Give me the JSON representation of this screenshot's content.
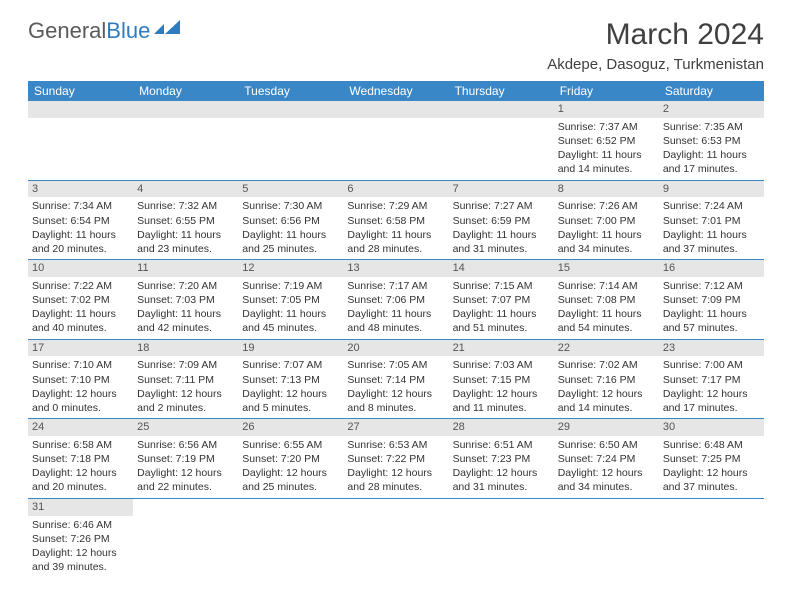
{
  "logo": {
    "general": "General",
    "blue": "Blue"
  },
  "title": "March 2024",
  "location": "Akdepe, Dasoguz, Turkmenistan",
  "colors": {
    "header_bg": "#3a87c8",
    "header_text": "#ffffff",
    "daynum_bg": "#e6e6e6",
    "border": "#3a87c8",
    "logo_gray": "#5a5a5a",
    "logo_blue": "#2f7bbf"
  },
  "day_headers": [
    "Sunday",
    "Monday",
    "Tuesday",
    "Wednesday",
    "Thursday",
    "Friday",
    "Saturday"
  ],
  "weeks": [
    [
      null,
      null,
      null,
      null,
      null,
      {
        "day": "1",
        "sunrise": "Sunrise: 7:37 AM",
        "sunset": "Sunset: 6:52 PM",
        "dl1": "Daylight: 11 hours",
        "dl2": "and 14 minutes."
      },
      {
        "day": "2",
        "sunrise": "Sunrise: 7:35 AM",
        "sunset": "Sunset: 6:53 PM",
        "dl1": "Daylight: 11 hours",
        "dl2": "and 17 minutes."
      }
    ],
    [
      {
        "day": "3",
        "sunrise": "Sunrise: 7:34 AM",
        "sunset": "Sunset: 6:54 PM",
        "dl1": "Daylight: 11 hours",
        "dl2": "and 20 minutes."
      },
      {
        "day": "4",
        "sunrise": "Sunrise: 7:32 AM",
        "sunset": "Sunset: 6:55 PM",
        "dl1": "Daylight: 11 hours",
        "dl2": "and 23 minutes."
      },
      {
        "day": "5",
        "sunrise": "Sunrise: 7:30 AM",
        "sunset": "Sunset: 6:56 PM",
        "dl1": "Daylight: 11 hours",
        "dl2": "and 25 minutes."
      },
      {
        "day": "6",
        "sunrise": "Sunrise: 7:29 AM",
        "sunset": "Sunset: 6:58 PM",
        "dl1": "Daylight: 11 hours",
        "dl2": "and 28 minutes."
      },
      {
        "day": "7",
        "sunrise": "Sunrise: 7:27 AM",
        "sunset": "Sunset: 6:59 PM",
        "dl1": "Daylight: 11 hours",
        "dl2": "and 31 minutes."
      },
      {
        "day": "8",
        "sunrise": "Sunrise: 7:26 AM",
        "sunset": "Sunset: 7:00 PM",
        "dl1": "Daylight: 11 hours",
        "dl2": "and 34 minutes."
      },
      {
        "day": "9",
        "sunrise": "Sunrise: 7:24 AM",
        "sunset": "Sunset: 7:01 PM",
        "dl1": "Daylight: 11 hours",
        "dl2": "and 37 minutes."
      }
    ],
    [
      {
        "day": "10",
        "sunrise": "Sunrise: 7:22 AM",
        "sunset": "Sunset: 7:02 PM",
        "dl1": "Daylight: 11 hours",
        "dl2": "and 40 minutes."
      },
      {
        "day": "11",
        "sunrise": "Sunrise: 7:20 AM",
        "sunset": "Sunset: 7:03 PM",
        "dl1": "Daylight: 11 hours",
        "dl2": "and 42 minutes."
      },
      {
        "day": "12",
        "sunrise": "Sunrise: 7:19 AM",
        "sunset": "Sunset: 7:05 PM",
        "dl1": "Daylight: 11 hours",
        "dl2": "and 45 minutes."
      },
      {
        "day": "13",
        "sunrise": "Sunrise: 7:17 AM",
        "sunset": "Sunset: 7:06 PM",
        "dl1": "Daylight: 11 hours",
        "dl2": "and 48 minutes."
      },
      {
        "day": "14",
        "sunrise": "Sunrise: 7:15 AM",
        "sunset": "Sunset: 7:07 PM",
        "dl1": "Daylight: 11 hours",
        "dl2": "and 51 minutes."
      },
      {
        "day": "15",
        "sunrise": "Sunrise: 7:14 AM",
        "sunset": "Sunset: 7:08 PM",
        "dl1": "Daylight: 11 hours",
        "dl2": "and 54 minutes."
      },
      {
        "day": "16",
        "sunrise": "Sunrise: 7:12 AM",
        "sunset": "Sunset: 7:09 PM",
        "dl1": "Daylight: 11 hours",
        "dl2": "and 57 minutes."
      }
    ],
    [
      {
        "day": "17",
        "sunrise": "Sunrise: 7:10 AM",
        "sunset": "Sunset: 7:10 PM",
        "dl1": "Daylight: 12 hours",
        "dl2": "and 0 minutes."
      },
      {
        "day": "18",
        "sunrise": "Sunrise: 7:09 AM",
        "sunset": "Sunset: 7:11 PM",
        "dl1": "Daylight: 12 hours",
        "dl2": "and 2 minutes."
      },
      {
        "day": "19",
        "sunrise": "Sunrise: 7:07 AM",
        "sunset": "Sunset: 7:13 PM",
        "dl1": "Daylight: 12 hours",
        "dl2": "and 5 minutes."
      },
      {
        "day": "20",
        "sunrise": "Sunrise: 7:05 AM",
        "sunset": "Sunset: 7:14 PM",
        "dl1": "Daylight: 12 hours",
        "dl2": "and 8 minutes."
      },
      {
        "day": "21",
        "sunrise": "Sunrise: 7:03 AM",
        "sunset": "Sunset: 7:15 PM",
        "dl1": "Daylight: 12 hours",
        "dl2": "and 11 minutes."
      },
      {
        "day": "22",
        "sunrise": "Sunrise: 7:02 AM",
        "sunset": "Sunset: 7:16 PM",
        "dl1": "Daylight: 12 hours",
        "dl2": "and 14 minutes."
      },
      {
        "day": "23",
        "sunrise": "Sunrise: 7:00 AM",
        "sunset": "Sunset: 7:17 PM",
        "dl1": "Daylight: 12 hours",
        "dl2": "and 17 minutes."
      }
    ],
    [
      {
        "day": "24",
        "sunrise": "Sunrise: 6:58 AM",
        "sunset": "Sunset: 7:18 PM",
        "dl1": "Daylight: 12 hours",
        "dl2": "and 20 minutes."
      },
      {
        "day": "25",
        "sunrise": "Sunrise: 6:56 AM",
        "sunset": "Sunset: 7:19 PM",
        "dl1": "Daylight: 12 hours",
        "dl2": "and 22 minutes."
      },
      {
        "day": "26",
        "sunrise": "Sunrise: 6:55 AM",
        "sunset": "Sunset: 7:20 PM",
        "dl1": "Daylight: 12 hours",
        "dl2": "and 25 minutes."
      },
      {
        "day": "27",
        "sunrise": "Sunrise: 6:53 AM",
        "sunset": "Sunset: 7:22 PM",
        "dl1": "Daylight: 12 hours",
        "dl2": "and 28 minutes."
      },
      {
        "day": "28",
        "sunrise": "Sunrise: 6:51 AM",
        "sunset": "Sunset: 7:23 PM",
        "dl1": "Daylight: 12 hours",
        "dl2": "and 31 minutes."
      },
      {
        "day": "29",
        "sunrise": "Sunrise: 6:50 AM",
        "sunset": "Sunset: 7:24 PM",
        "dl1": "Daylight: 12 hours",
        "dl2": "and 34 minutes."
      },
      {
        "day": "30",
        "sunrise": "Sunrise: 6:48 AM",
        "sunset": "Sunset: 7:25 PM",
        "dl1": "Daylight: 12 hours",
        "dl2": "and 37 minutes."
      }
    ],
    [
      {
        "day": "31",
        "sunrise": "Sunrise: 6:46 AM",
        "sunset": "Sunset: 7:26 PM",
        "dl1": "Daylight: 12 hours",
        "dl2": "and 39 minutes."
      },
      null,
      null,
      null,
      null,
      null,
      null
    ]
  ]
}
